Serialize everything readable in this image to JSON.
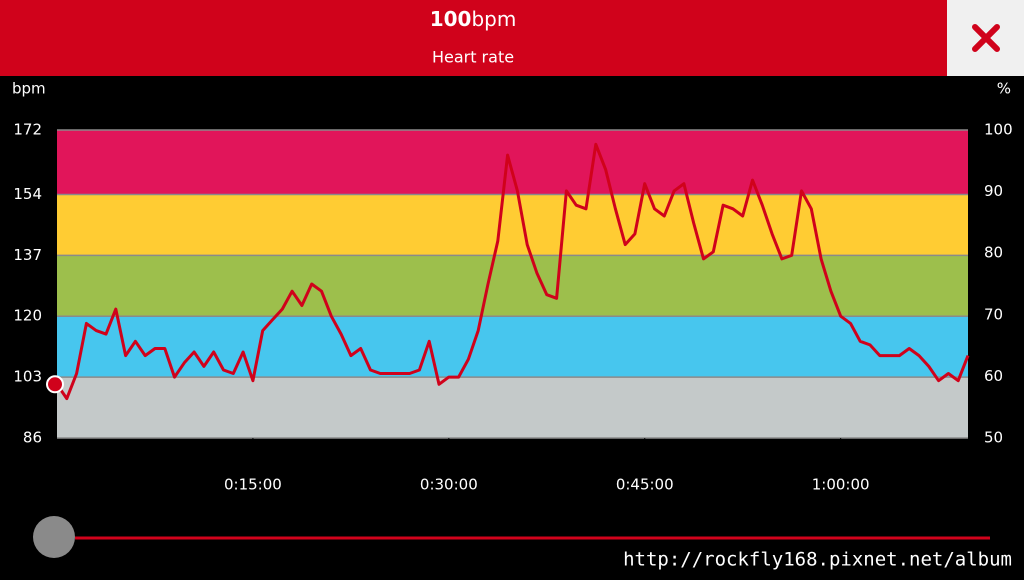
{
  "header": {
    "value": "100",
    "unit": "bpm",
    "subtitle": "Heart rate"
  },
  "chart_data": {
    "type": "line",
    "y_label": "bpm",
    "y2_label": "%",
    "color": "#d0021b",
    "xlim": [
      0,
      69.75
    ],
    "xticks": [
      {
        "value": 15,
        "label": "0:15:00"
      },
      {
        "value": 30,
        "label": "0:30:00"
      },
      {
        "value": 45,
        "label": "0:45:00"
      },
      {
        "value": 60,
        "label": "1:00:00"
      }
    ],
    "ylim": [
      86,
      172
    ],
    "yticks": [
      86,
      103,
      120,
      137,
      154,
      172
    ],
    "y2lim": [
      50,
      100
    ],
    "y2ticks": [
      50,
      60,
      70,
      80,
      90,
      100
    ],
    "grid": true,
    "zones": [
      {
        "from": 86,
        "to": 103,
        "color": "#c4c9c9"
      },
      {
        "from": 103,
        "to": 120,
        "color": "#47c6ee"
      },
      {
        "from": 120,
        "to": 137,
        "color": "#9dbf4c"
      },
      {
        "from": 137,
        "to": 154,
        "color": "#ffcc33"
      },
      {
        "from": 154,
        "to": 172,
        "color": "#e1155a"
      }
    ],
    "x": [
      0,
      0.75,
      1.5,
      2.25,
      3,
      3.75,
      4.5,
      5.25,
      6,
      6.75,
      7.5,
      8.25,
      9,
      9.75,
      10.5,
      11.25,
      12,
      12.75,
      13.5,
      14.25,
      15,
      15.75,
      16.5,
      17.25,
      18,
      18.75,
      19.5,
      20.25,
      21,
      21.75,
      22.5,
      23.25,
      24,
      24.75,
      25.5,
      26.25,
      27,
      27.75,
      28.5,
      29.25,
      30,
      30.75,
      31.5,
      32.25,
      33,
      33.75,
      34.5,
      35.25,
      36,
      36.75,
      37.5,
      38.25,
      39,
      39.75,
      40.5,
      41.25,
      42,
      42.75,
      43.5,
      44.25,
      45,
      45.75,
      46.5,
      47.25,
      48,
      48.75,
      49.5,
      50.25,
      51,
      51.75,
      52.5,
      53.25,
      54,
      54.75,
      55.5,
      56.25,
      57,
      57.75,
      58.5,
      59.25,
      60,
      60.75,
      61.5,
      62.25,
      63,
      63.75,
      64.5,
      65.25,
      66,
      66.75,
      67.5,
      68.25,
      69,
      69.75
    ],
    "values": [
      101,
      97,
      104,
      118,
      116,
      115,
      122,
      109,
      113,
      109,
      111,
      111,
      103,
      107,
      110,
      106,
      110,
      105,
      104,
      110,
      102,
      116,
      119,
      122,
      127,
      123,
      129,
      127,
      120,
      115,
      109,
      111,
      105,
      104,
      104,
      104,
      104,
      105,
      113,
      101,
      103,
      103,
      108,
      116,
      129,
      141,
      165,
      155,
      140,
      132,
      126,
      125,
      155,
      151,
      150,
      168,
      161,
      150,
      140,
      143,
      157,
      150,
      148,
      155,
      157,
      146,
      136,
      138,
      151,
      150,
      148,
      158,
      151,
      143,
      136,
      137,
      155,
      150,
      136,
      127,
      120,
      118,
      113,
      112,
      109,
      109,
      109,
      111,
      109,
      106,
      102,
      104,
      102,
      109
    ]
  },
  "watermark": "http://rockfly168.pixnet.net/album"
}
